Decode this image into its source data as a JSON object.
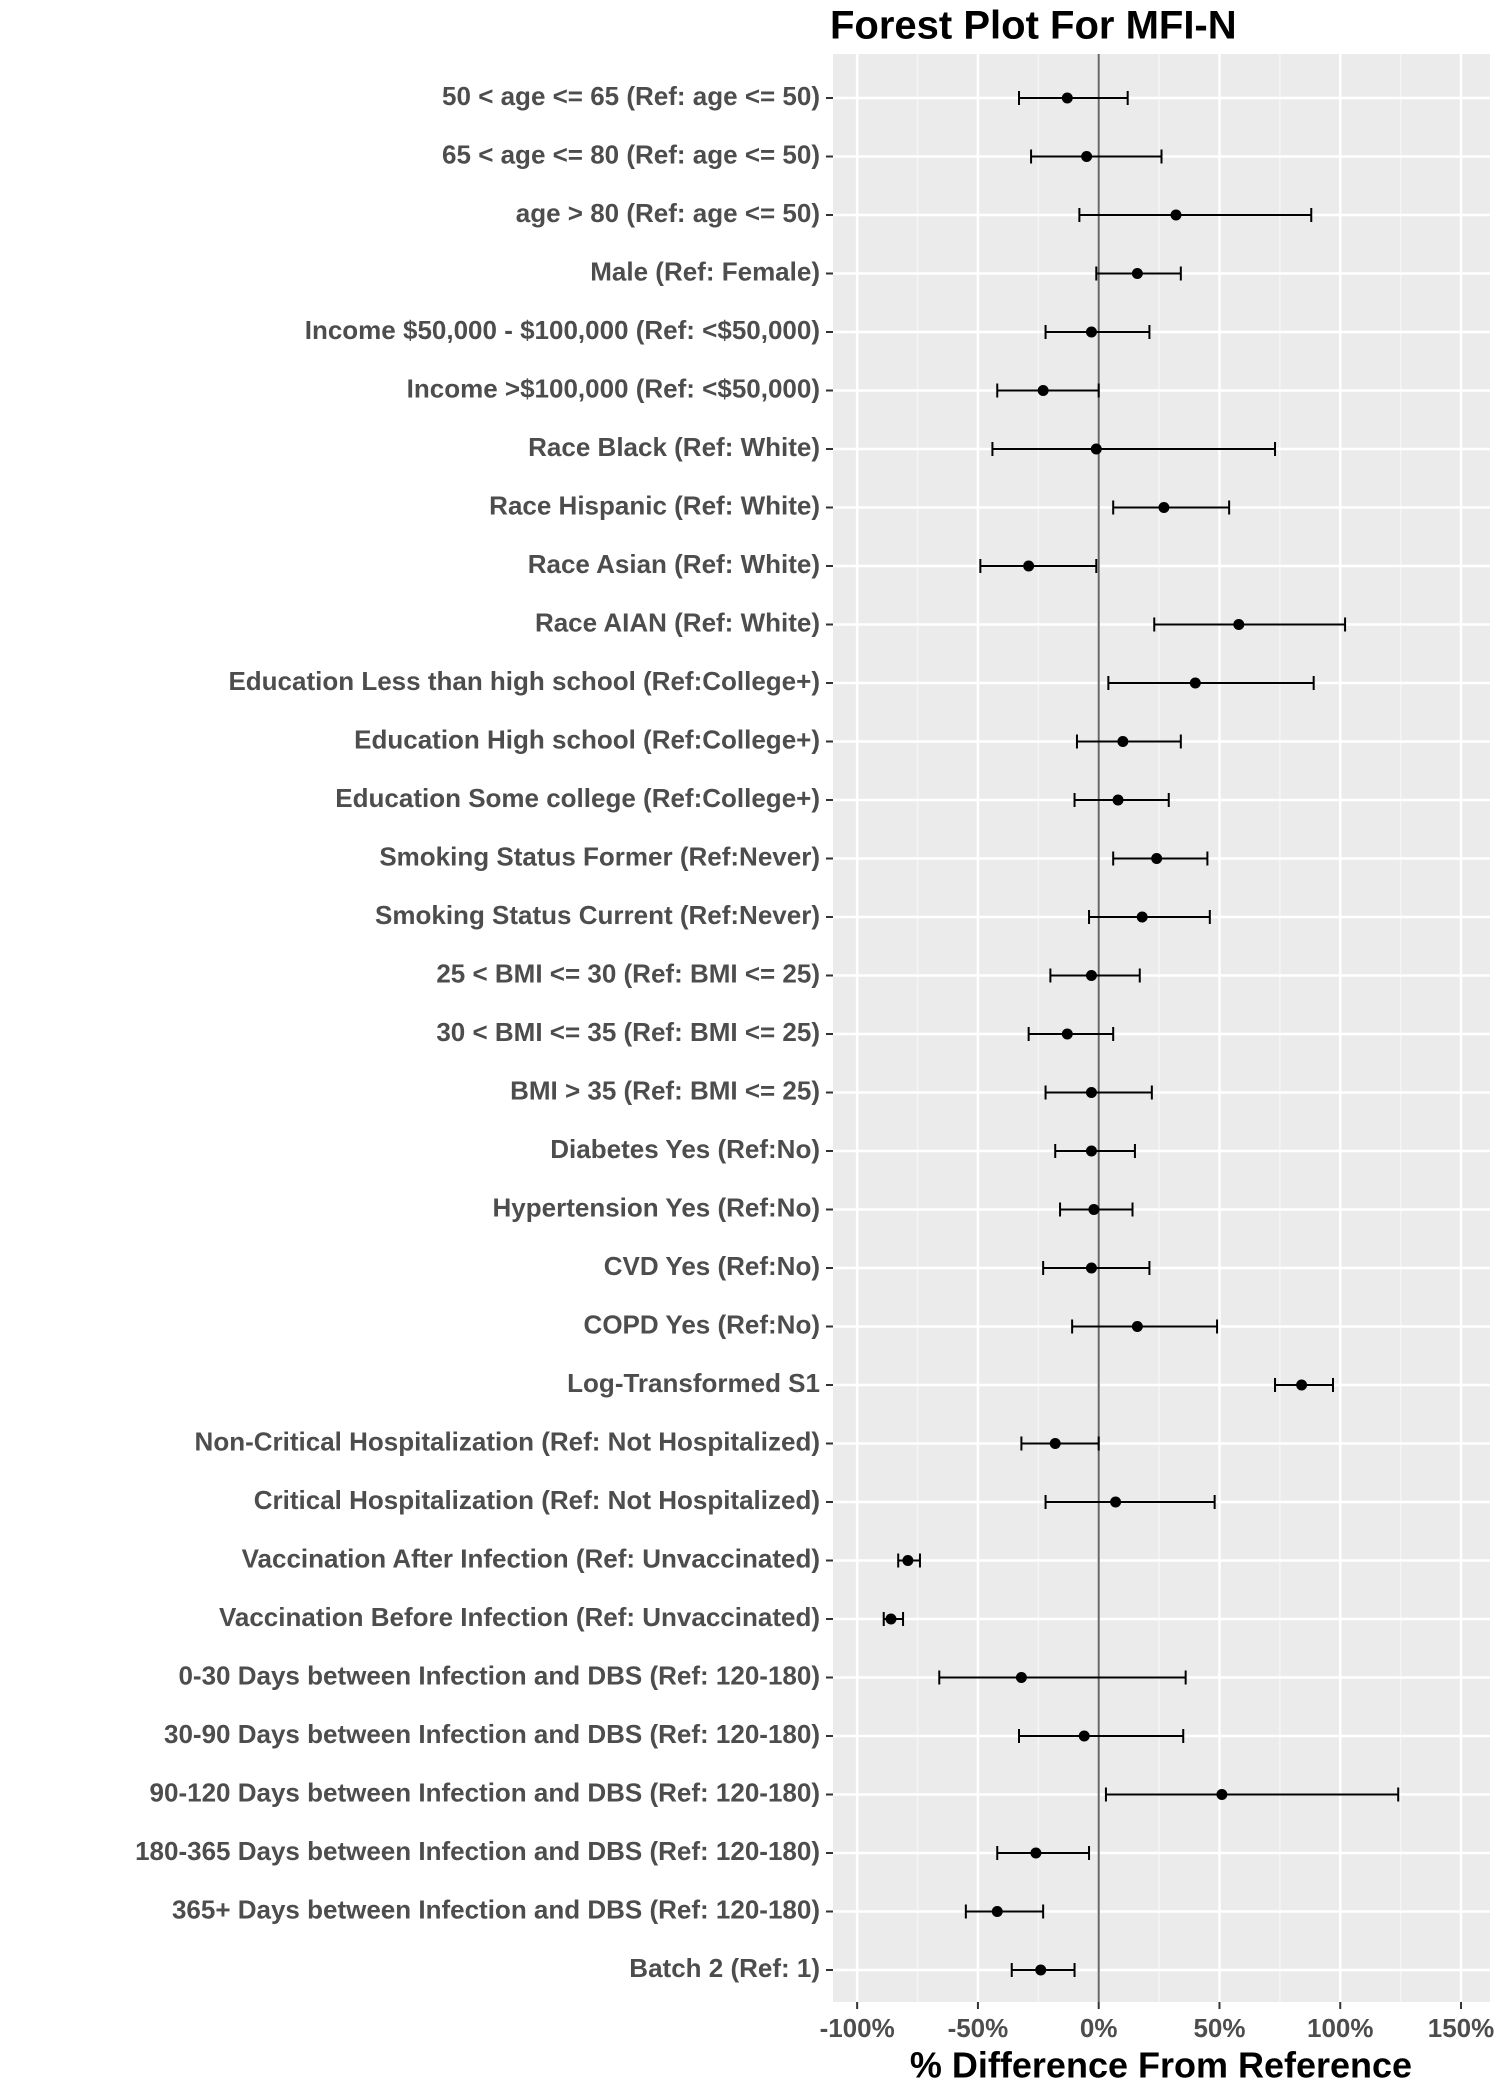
{
  "chart_data": {
    "type": "forest",
    "title": "Forest Plot For MFI-N",
    "xlabel": "% Difference From Reference",
    "categories": [
      "50 < age <= 65 (Ref: age <= 50)",
      "65 < age <= 80 (Ref: age <= 50)",
      "age > 80 (Ref: age <= 50)",
      "Male (Ref: Female)",
      "Income $50,000 - $100,000 (Ref: <$50,000)",
      "Income >$100,000 (Ref: <$50,000)",
      "Race Black (Ref: White)",
      "Race Hispanic (Ref: White)",
      "Race Asian (Ref: White)",
      "Race AIAN (Ref: White)",
      "Education Less than high school (Ref:College+)",
      "Education High school (Ref:College+)",
      "Education Some college (Ref:College+)",
      "Smoking Status Former (Ref:Never)",
      "Smoking Status Current (Ref:Never)",
      "25 < BMI <= 30 (Ref: BMI <= 25)",
      "30 < BMI <= 35 (Ref: BMI <= 25)",
      "BMI > 35 (Ref: BMI <= 25)",
      "Diabetes Yes (Ref:No)",
      "Hypertension Yes (Ref:No)",
      "CVD Yes (Ref:No)",
      "COPD Yes (Ref:No)",
      "Log-Transformed S1",
      "Non-Critical Hospitalization (Ref: Not Hospitalized)",
      "Critical Hospitalization (Ref: Not Hospitalized)",
      "Vaccination After Infection (Ref: Unvaccinated)",
      "Vaccination Before Infection (Ref: Unvaccinated)",
      "0-30 Days between Infection and DBS (Ref: 120-180)",
      "30-90 Days between Infection and DBS (Ref: 120-180)",
      "90-120 Days between Infection and DBS (Ref: 120-180)",
      "180-365 Days between Infection and DBS (Ref: 120-180)",
      "365+ Days between Infection and DBS (Ref: 120-180)",
      "Batch 2 (Ref: 1)"
    ],
    "values": [
      -13,
      -5,
      32,
      16,
      -3,
      -23,
      -1,
      27,
      -29,
      58,
      40,
      10,
      8,
      24,
      18,
      -3,
      -13,
      -3,
      -3,
      -2,
      -3,
      16,
      84,
      -18,
      7,
      -79,
      -86,
      -32,
      -6,
      51,
      -26,
      -42,
      -24
    ],
    "lower": [
      -33,
      -28,
      -8,
      -1,
      -22,
      -42,
      -44,
      6,
      -49,
      23,
      4,
      -9,
      -10,
      6,
      -4,
      -20,
      -29,
      -22,
      -18,
      -16,
      -23,
      -11,
      73,
      -32,
      -22,
      -83,
      -89,
      -66,
      -33,
      3,
      -42,
      -55,
      -36
    ],
    "upper": [
      12,
      26,
      88,
      34,
      21,
      0,
      73,
      54,
      -1,
      102,
      89,
      34,
      29,
      45,
      46,
      17,
      6,
      22,
      15,
      14,
      21,
      49,
      97,
      0,
      48,
      -74,
      -81,
      36,
      35,
      124,
      -4,
      -23,
      -10
    ],
    "xlim": [
      -110,
      162
    ],
    "xticks": [
      {
        "value": -100,
        "label": "-100%"
      },
      {
        "value": -50,
        "label": "-50%"
      },
      {
        "value": 0,
        "label": "0%"
      },
      {
        "value": 50,
        "label": "50%"
      },
      {
        "value": 100,
        "label": "100%"
      },
      {
        "value": 150,
        "label": "150%"
      }
    ],
    "color": "#000000",
    "grid": true
  }
}
